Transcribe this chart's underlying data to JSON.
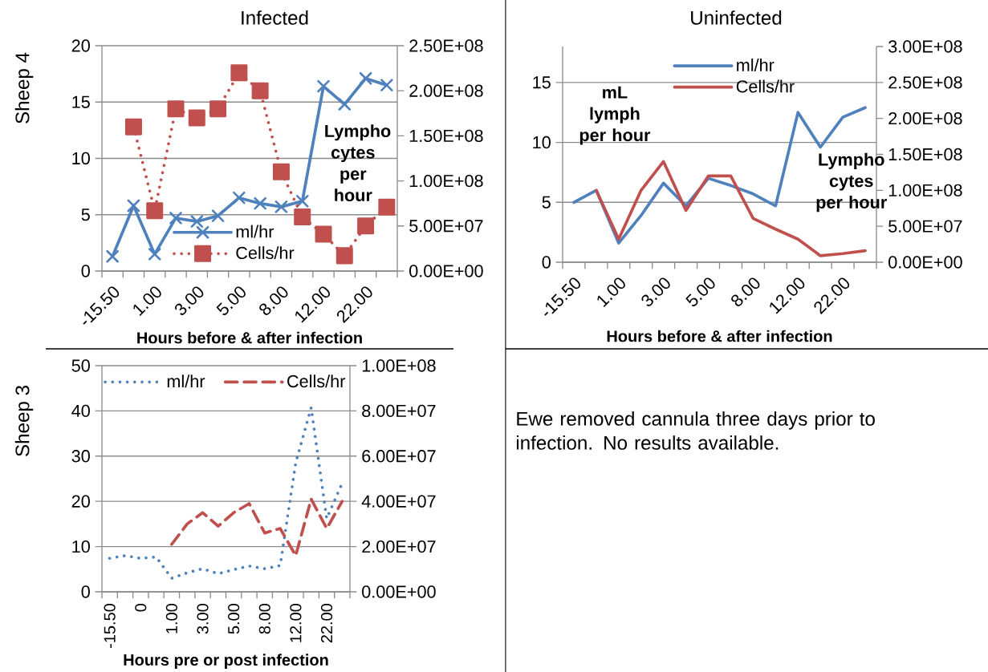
{
  "chart_data": [
    {
      "type": "line",
      "title": "Infected",
      "annotations": [
        "Sheep 4"
      ],
      "xlabel": "Hours before & after infection",
      "y2label": "Lympho cytes per hour",
      "categories": [
        "-15.50",
        null,
        "1.00",
        null,
        "3.00",
        null,
        "5.00",
        null,
        "8.00",
        null,
        "12.00",
        null,
        "22.00",
        null
      ],
      "series": [
        {
          "name": "ml/hr",
          "color": "#4f81bd",
          "marker": "cross",
          "line_style": "solid",
          "values": [
            1.3,
            5.8,
            1.5,
            4.7,
            4.4,
            4.9,
            6.5,
            6.0,
            5.7,
            6.2,
            16.4,
            14.8,
            17.1,
            16.5
          ]
        },
        {
          "name": "Cells/hr",
          "color": "#c0504d",
          "marker": "square",
          "line_style": "dotted",
          "axis": "y2",
          "values": [
            null,
            160000000,
            67000000,
            180000000,
            170000000,
            180000000,
            220000000,
            200000000,
            110000000,
            60000000,
            41000000,
            17000000,
            50000000,
            71000000
          ]
        }
      ],
      "ylim": [
        0,
        20
      ],
      "yticks": [
        0,
        5,
        10,
        15,
        20
      ],
      "y2lim": [
        0,
        250000000
      ],
      "y2ticks": [
        {
          "value": 0,
          "label": "0.00E+00"
        },
        {
          "value": 50000000,
          "label": "5.00E+07"
        },
        {
          "value": 100000000,
          "label": "1.00E+08"
        },
        {
          "value": 150000000,
          "label": "1.50E+08"
        },
        {
          "value": 200000000,
          "label": "2.00E+08"
        },
        {
          "value": 250000000,
          "label": "2.50E+08"
        }
      ],
      "grid": "y",
      "legend": "bottom"
    },
    {
      "type": "line",
      "title": "Uninfected",
      "xlabel": "Hours before & after infection",
      "ylabel": "mL lymph per hour",
      "y2label": "Lympho cytes per hour",
      "categories": [
        "-15.50",
        null,
        "1.00",
        null,
        "3.00",
        null,
        "5.00",
        null,
        "8.00",
        null,
        "12.00",
        null,
        "22.00",
        null
      ],
      "series": [
        {
          "name": "ml/hr",
          "color": "#4f81bd",
          "marker": "none",
          "line_style": "solid",
          "values": [
            5.0,
            6.0,
            1.6,
            3.9,
            6.6,
            4.7,
            7.0,
            6.4,
            5.7,
            4.7,
            12.5,
            9.6,
            12.1,
            12.9
          ]
        },
        {
          "name": "Cells/hr",
          "color": "#c0504d",
          "marker": "none",
          "line_style": "solid",
          "axis": "y2",
          "values": [
            null,
            100000000,
            32000000,
            100000000,
            140000000,
            72000000,
            120000000,
            120000000,
            61000000,
            46000000,
            32000000,
            9000000,
            12000000,
            16000000
          ]
        }
      ],
      "ylim": [
        0,
        18
      ],
      "yticks": [
        0,
        5,
        10,
        15
      ],
      "y2lim": [
        0,
        300000000
      ],
      "y2ticks": [
        {
          "value": 0,
          "label": "0.00E+00"
        },
        {
          "value": 50000000,
          "label": "5.00E+07"
        },
        {
          "value": 100000000,
          "label": "1.00E+08"
        },
        {
          "value": 150000000,
          "label": "1.50E+08"
        },
        {
          "value": 200000000,
          "label": "2.00E+08"
        },
        {
          "value": 250000000,
          "label": "2.50E+08"
        },
        {
          "value": 300000000,
          "label": "3.00E+08"
        }
      ],
      "grid": "y",
      "legend": "top"
    },
    {
      "type": "line",
      "annotations": [
        "Sheep 3"
      ],
      "xlabel": "Hours pre or post infection",
      "categories": [
        "-15.50",
        null,
        "0",
        null,
        "1.00",
        null,
        "3.00",
        null,
        "5.00",
        null,
        "8.00",
        null,
        "12.00",
        null,
        "22.00",
        null
      ],
      "series": [
        {
          "name": "ml/hr",
          "color": "#4f81bd",
          "marker": "none",
          "line_style": "dotted",
          "values": [
            7.4,
            8.0,
            7.4,
            7.7,
            3.0,
            4.2,
            5.1,
            4.0,
            4.9,
            5.7,
            5.1,
            5.8,
            28.5,
            40.7,
            16.2,
            24.0
          ]
        },
        {
          "name": "Cells/hr",
          "color": "#c0504d",
          "marker": "none",
          "line_style": "dashed",
          "axis": "y2",
          "values": [
            null,
            null,
            null,
            null,
            21000000,
            30000000,
            35000000,
            29000000,
            35000000,
            39000000,
            26000000,
            28000000,
            16000000,
            41000000,
            28000000,
            40000000
          ]
        }
      ],
      "ylim": [
        0,
        50
      ],
      "yticks": [
        0,
        10,
        20,
        30,
        40,
        50
      ],
      "y2lim": [
        0,
        100000000
      ],
      "y2ticks": [
        {
          "value": 0,
          "label": "0.00E+00"
        },
        {
          "value": 20000000,
          "label": "2.00E+07"
        },
        {
          "value": 40000000,
          "label": "4.00E+07"
        },
        {
          "value": 60000000,
          "label": "6.00E+07"
        },
        {
          "value": 80000000,
          "label": "8.00E+07"
        },
        {
          "value": 100000000,
          "label": "1.00E+08"
        }
      ],
      "grid": "y",
      "legend": "top"
    },
    {
      "type": "other",
      "annotations": [
        "Ewe removed cannula three days prior to infection. No results available."
      ]
    }
  ]
}
